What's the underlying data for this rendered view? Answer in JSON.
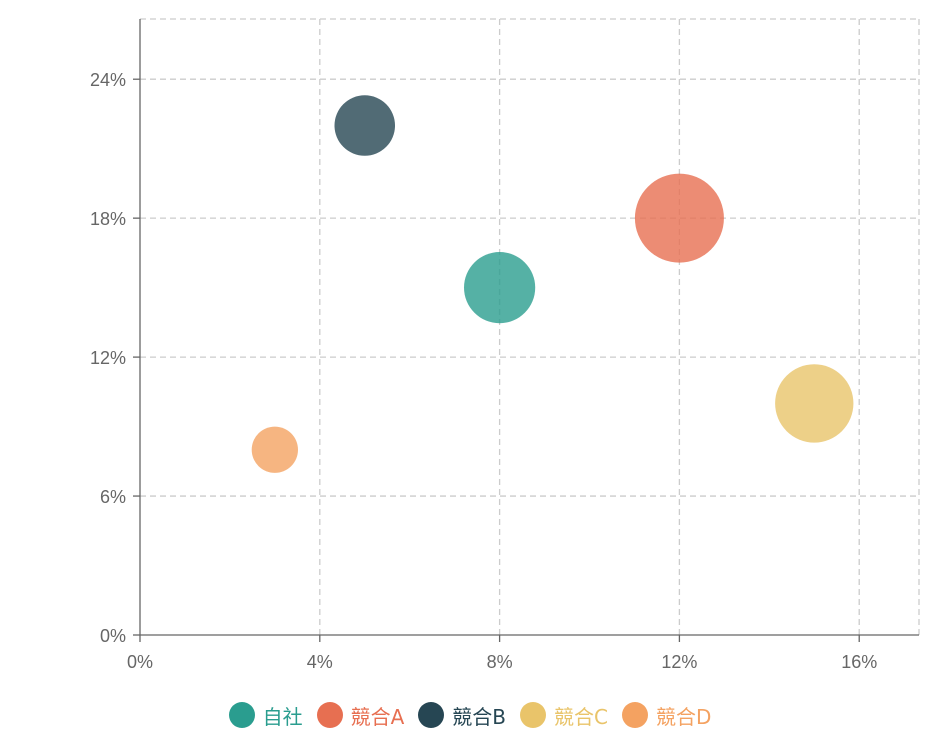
{
  "chart_data": {
    "type": "scatter",
    "subtype": "bubble",
    "xlim": [
      0,
      17.33
    ],
    "ylim": [
      0,
      26.6
    ],
    "x_ticks": [
      "0%",
      "4%",
      "8%",
      "12%",
      "16%"
    ],
    "x_tick_values": [
      0,
      4,
      8,
      12,
      16
    ],
    "y_ticks": [
      "0%",
      "6%",
      "12%",
      "18%",
      "24%"
    ],
    "y_tick_values": [
      0,
      6,
      12,
      18,
      24
    ],
    "grid": true,
    "legend_position": "bottom",
    "series": [
      {
        "name": "自社",
        "color": "#2a9d8f",
        "x": 8,
        "y": 15,
        "size": 20
      },
      {
        "name": "競合A",
        "color": "#e76f51",
        "x": 12,
        "y": 18,
        "size": 25
      },
      {
        "name": "競合B",
        "color": "#264653",
        "x": 5,
        "y": 22,
        "size": 17
      },
      {
        "name": "競合C",
        "color": "#e9c46a",
        "x": 15,
        "y": 10,
        "size": 22
      },
      {
        "name": "競合D",
        "color": "#f4a261",
        "x": 3,
        "y": 8,
        "size": 13
      }
    ]
  }
}
